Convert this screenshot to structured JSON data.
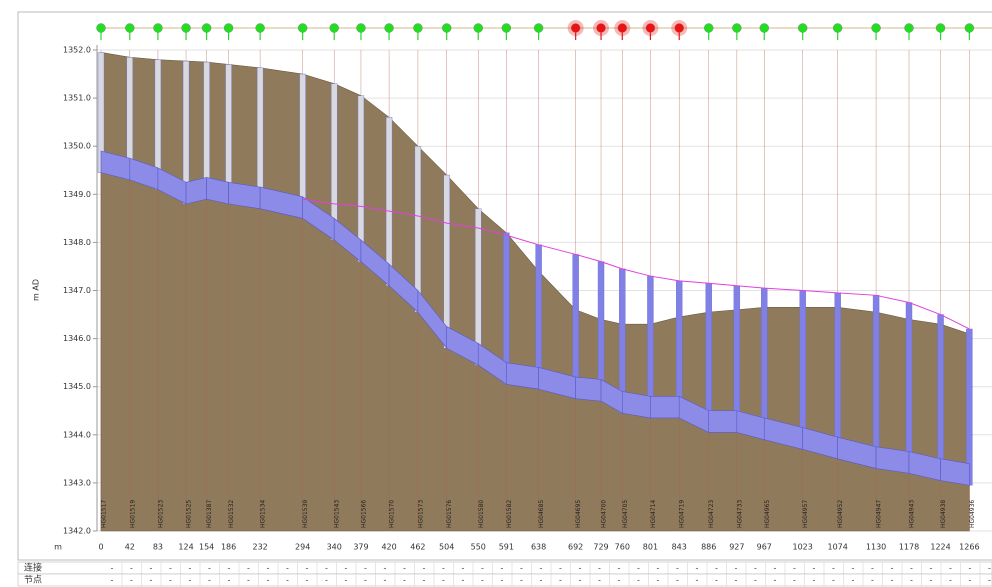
{
  "chart_data": {
    "type": "profile",
    "ylabel": "m AD",
    "xlabel": "m",
    "ylim": [
      1342,
      1352
    ],
    "yticks": [
      {
        "value": 1342,
        "label": "1342.0"
      },
      {
        "value": 1343,
        "label": "1343.0"
      },
      {
        "value": 1344,
        "label": "1344.0"
      },
      {
        "value": 1345,
        "label": "1345.0"
      },
      {
        "value": 1346,
        "label": "1346.0"
      },
      {
        "value": 1347,
        "label": "1347.0"
      },
      {
        "value": 1348,
        "label": "1348.0"
      },
      {
        "value": 1349,
        "label": "1349.0"
      },
      {
        "value": 1350,
        "label": "1350.0"
      },
      {
        "value": 1351,
        "label": "1351.0"
      },
      {
        "value": 1352,
        "label": "1352.0"
      }
    ],
    "xlim": [
      0,
      1299
    ],
    "grid": true,
    "x": [
      0,
      42,
      83,
      124,
      154,
      186,
      232,
      294,
      340,
      379,
      420,
      462,
      504,
      550,
      591,
      638,
      692,
      729,
      760,
      801,
      843,
      886,
      927,
      967,
      1023,
      1074,
      1130,
      1178,
      1224,
      1266
    ],
    "node_labels": [
      "HG01517",
      "HG01519",
      "HG01523",
      "HG01525",
      "HG01387",
      "HG01532",
      "HG01534",
      "HG01539",
      "HG01543",
      "HG01566",
      "HG01570",
      "HG01573",
      "HG01576",
      "HG01580",
      "HG01582",
      "HG04685",
      "HG04695",
      "HG04700",
      "HG04705",
      "HG04714",
      "HG04719",
      "HG04723",
      "HG04733",
      "HG04965",
      "HG04957",
      "HG04952",
      "HG04947",
      "HG04943",
      "HG04938",
      "HG04936"
    ],
    "node_colors": [
      "#22dd22",
      "#22dd22",
      "#22dd22",
      "#22dd22",
      "#22dd22",
      "#22dd22",
      "#22dd22",
      "#22dd22",
      "#22dd22",
      "#22dd22",
      "#22dd22",
      "#22dd22",
      "#22dd22",
      "#22dd22",
      "#22dd22",
      "#22dd22",
      "#ee1111",
      "#ee1111",
      "#ee1111",
      "#ee1111",
      "#ee1111",
      "#22dd22",
      "#22dd22",
      "#22dd22",
      "#22dd22",
      "#22dd22",
      "#22dd22",
      "#22dd22",
      "#22dd22",
      "#22dd22"
    ],
    "series": [
      {
        "color": "#8f7a5c",
        "values": [
          1351.95,
          1351.85,
          1351.8,
          1351.77,
          1351.75,
          1351.7,
          1351.63,
          1351.5,
          1351.3,
          1351.05,
          1350.6,
          1350.0,
          1349.4,
          1348.7,
          1348.2,
          1347.4,
          1346.6,
          1346.4,
          1346.3,
          1346.3,
          1346.45,
          1346.55,
          1346.6,
          1346.65,
          1346.65,
          1346.65,
          1346.55,
          1346.4,
          1346.3,
          1346.1
        ]
      },
      {
        "color": "#8c8ce8",
        "values": [
          1349.45,
          1349.3,
          1349.1,
          1348.8,
          1348.9,
          1348.8,
          1348.7,
          1348.5,
          1348.05,
          1347.6,
          1347.1,
          1346.55,
          1345.8,
          1345.45,
          1345.05,
          1344.95,
          1344.75,
          1344.7,
          1344.45,
          1344.35,
          1344.35,
          1344.05,
          1344.05,
          1343.9,
          1343.7,
          1343.5,
          1343.3,
          1343.2,
          1343.05,
          1342.95
        ]
      },
      {
        "color": "#8c8ce8",
        "values": [
          1349.9,
          1349.75,
          1349.55,
          1349.25,
          1349.35,
          1349.25,
          1349.15,
          1348.95,
          1348.5,
          1348.05,
          1347.55,
          1347.0,
          1346.25,
          1345.9,
          1345.5,
          1345.4,
          1345.2,
          1345.15,
          1344.9,
          1344.8,
          1344.8,
          1344.5,
          1344.5,
          1344.35,
          1344.15,
          1343.95,
          1343.75,
          1343.65,
          1343.5,
          1343.4
        ]
      },
      {
        "color": "#e040e0",
        "values": [
          null,
          null,
          null,
          null,
          null,
          null,
          null,
          1348.9,
          1348.8,
          1348.75,
          1348.65,
          1348.55,
          1348.4,
          1348.3,
          1348.15,
          1347.95,
          1347.75,
          1347.6,
          1347.45,
          1347.3,
          1347.2,
          1347.15,
          1347.1,
          1347.05,
          1347.0,
          1346.95,
          1346.9,
          1346.75,
          1346.5,
          1346.2
        ]
      }
    ]
  },
  "table": {
    "rows": [
      {
        "label": "连接",
        "cells": [
          "-",
          "-",
          "-",
          "-",
          "-",
          "-",
          "-",
          "-",
          "-",
          "-",
          "-",
          "-",
          "-",
          "-",
          "-",
          "-",
          "-",
          "-",
          "-",
          "-",
          "-",
          "-",
          "-",
          "-",
          "-",
          "-",
          "-",
          "-",
          "-",
          "-",
          "-",
          "-",
          "-",
          "-",
          "-",
          "-",
          "-",
          "-",
          "-",
          "-",
          "-",
          "-",
          "-",
          "-",
          "-",
          "-"
        ]
      },
      {
        "label": "节点",
        "cells": [
          "-",
          "-",
          "-",
          "-",
          "-",
          "-",
          "-",
          "-",
          "-",
          "-",
          "-",
          "-",
          "-",
          "-",
          "-",
          "-",
          "-",
          "-",
          "-",
          "-",
          "-",
          "-",
          "-",
          "-",
          "-",
          "-",
          "-",
          "-",
          "-",
          "-",
          "-",
          "-",
          "-",
          "-",
          "-",
          "-",
          "-",
          "-",
          "-",
          "-",
          "-",
          "-",
          "-",
          "-",
          "-",
          "-"
        ]
      }
    ]
  }
}
